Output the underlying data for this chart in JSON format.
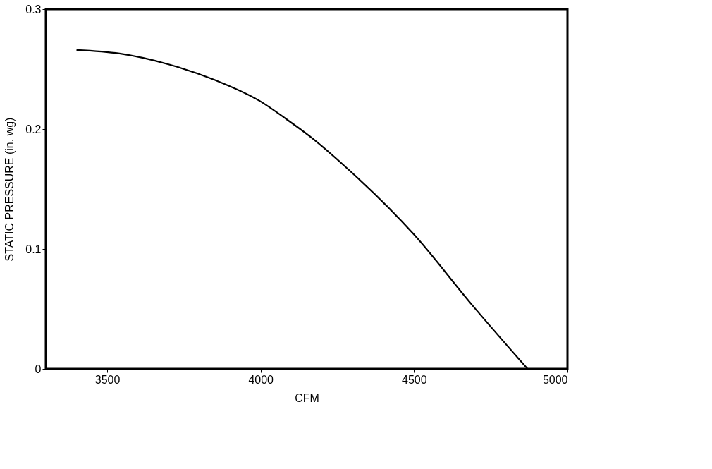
{
  "chart_data": {
    "type": "line",
    "xlabel": "CFM",
    "ylabel": "STATIC PRESSURE (in. wg)",
    "xlim": [
      3300,
      5000
    ],
    "xticks": [
      3500,
      4000,
      4500,
      5000
    ],
    "ylim": [
      0,
      0.3
    ],
    "yticks": [
      0,
      0.1,
      0.2,
      0.3
    ],
    "grid": false,
    "series": [
      {
        "color": "#000000",
        "x": [
          3400,
          3540,
          3700,
          3850,
          4000,
          4080,
          4160,
          4270,
          4500,
          4690,
          4870
        ],
        "values": [
          0.266,
          0.263,
          0.254,
          0.241,
          0.223,
          0.209,
          0.194,
          0.17,
          0.112,
          0.053,
          0
        ]
      }
    ]
  }
}
